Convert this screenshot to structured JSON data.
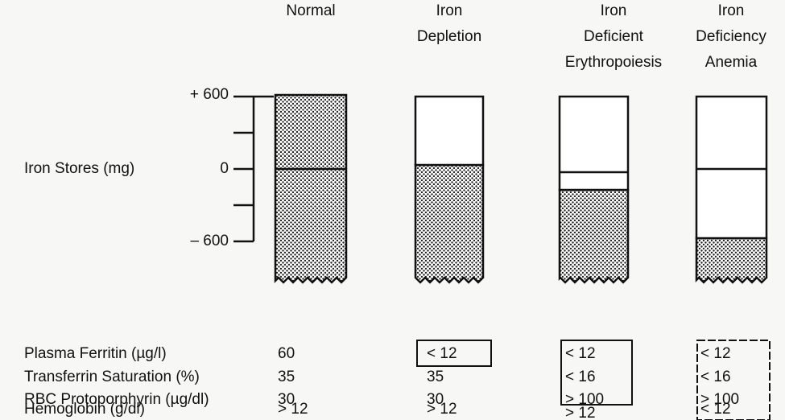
{
  "columns": [
    {
      "title": [
        "Normal"
      ]
    },
    {
      "title": [
        "Iron",
        "Depletion"
      ]
    },
    {
      "title": [
        "Iron",
        "Deficient",
        "Erythropoiesis"
      ]
    },
    {
      "title": [
        "Iron",
        "Deficiency",
        "Anemia"
      ]
    }
  ],
  "axis": {
    "label": "Iron Stores (mg)",
    "ticks": [
      "+ 600",
      "0",
      "– 600"
    ]
  },
  "rows": [
    {
      "label": "Plasma Ferritin (µg/l)",
      "values": [
        "60",
        "< 12",
        "< 12",
        "< 12"
      ]
    },
    {
      "label": "Transferrin Saturation (%)",
      "values": [
        "35",
        "35",
        "< 16",
        "< 16"
      ]
    },
    {
      "label": "RBC Protoporphyrin (µg/dl)",
      "values": [
        "30",
        "30",
        "> 100",
        "> 100"
      ]
    },
    {
      "label": "Hemoglobin (g/dl)",
      "values": [
        "> 12",
        "> 12",
        "> 12",
        "< 12"
      ]
    }
  ]
}
